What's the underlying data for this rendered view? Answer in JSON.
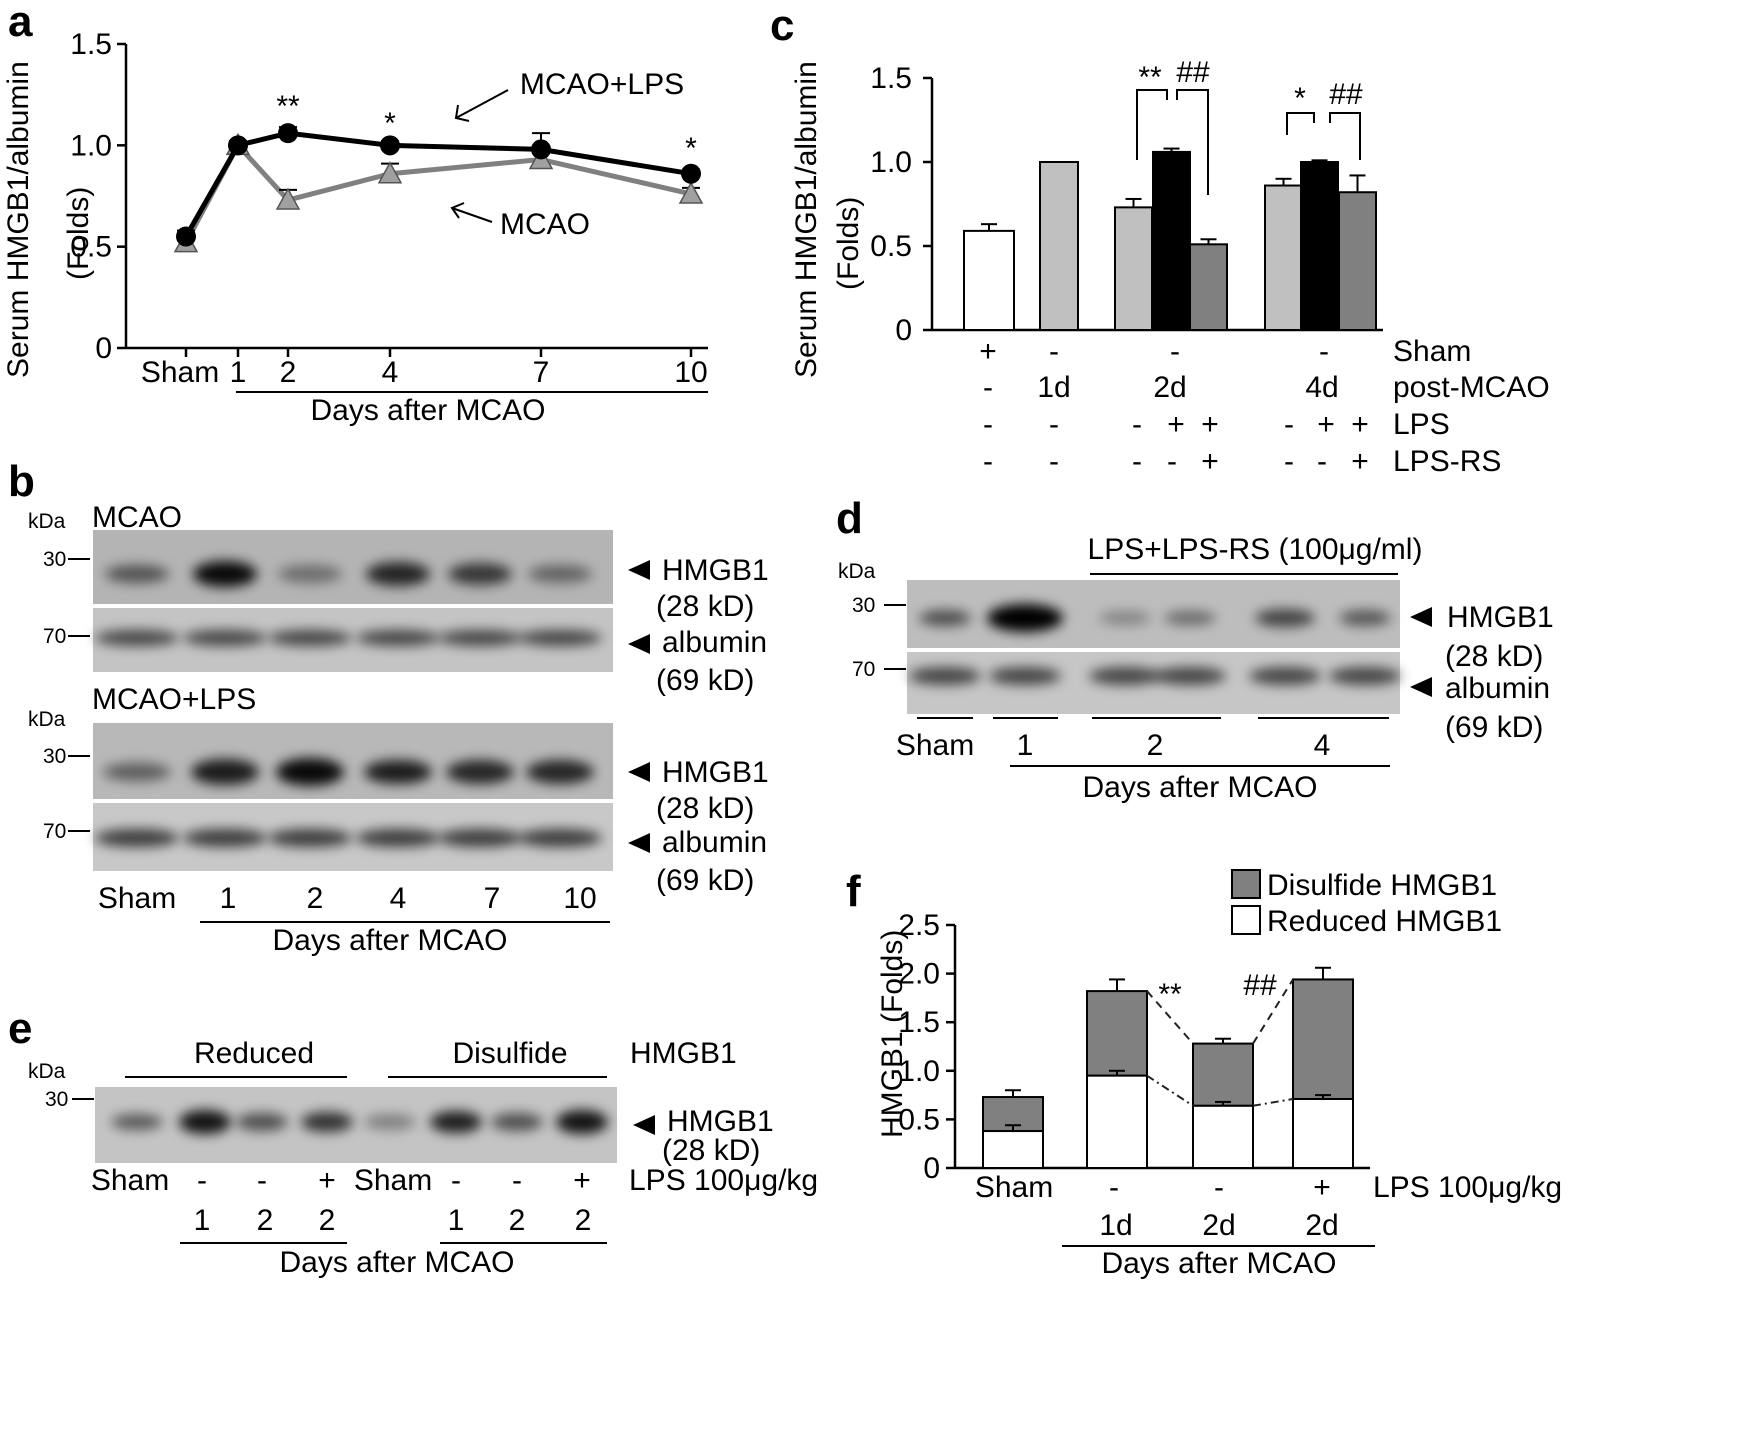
{
  "panels": {
    "a": {
      "letter": "a",
      "ylabel": "Serum HMGB1/albumin",
      "ylabel2": "(Folds)",
      "xlabel": "Days after MCAO",
      "yticks": [
        "1.5",
        "1.0",
        "0.5",
        "0"
      ],
      "xticks": [
        "Sham",
        "1",
        "2",
        "4",
        "7",
        "10"
      ],
      "annot": {
        "mcao_lps": "MCAO+LPS",
        "mcao": "MCAO"
      },
      "sig": [
        "**",
        "*",
        "*"
      ]
    },
    "b": {
      "letter": "b",
      "blot1_title": "MCAO",
      "blot2_title": "MCAO+LPS",
      "kda": "kDa",
      "mw30": "30",
      "mw70": "70",
      "hmgb1": "HMGB1",
      "hmgb1_size": "(28 kD)",
      "albumin": "albumin",
      "albumin_size": "(69 kD)",
      "lanes": [
        "Sham",
        "1",
        "2",
        "4",
        "7",
        "10"
      ],
      "xlabel": "Days after MCAO"
    },
    "c": {
      "letter": "c",
      "ylabel": "Serum HMGB1/albumin",
      "ylabel2": "(Folds)",
      "yticks": [
        "1.5",
        "1.0",
        "0.5",
        "0"
      ],
      "sig": {
        "s2a": "**",
        "s2b": "##",
        "s4a": "*",
        "s4b": "##"
      },
      "row_labels": [
        "Sham",
        "post-MCAO",
        "LPS",
        "LPS-RS"
      ],
      "row_sham": [
        "+",
        "-",
        "-",
        "-"
      ],
      "row_post": [
        "-",
        "1d",
        "2d",
        "4d"
      ],
      "row_lps": [
        "-",
        "-",
        "-",
        "+",
        "+",
        "-",
        "+",
        "+"
      ],
      "row_lpsrs": [
        "-",
        "-",
        "-",
        "-",
        "+",
        "-",
        "-",
        "+"
      ]
    },
    "d": {
      "letter": "d",
      "header": "LPS+LPS-RS (100μg/ml)",
      "kda": "kDa",
      "mw30": "30",
      "mw70": "70",
      "hmgb1": "HMGB1",
      "hmgb1_size": "(28 kD)",
      "albumin": "albumin",
      "albumin_size": "(69 kD)",
      "lanes": [
        "Sham",
        "1",
        "2",
        "4"
      ],
      "xlabel": "Days after MCAO"
    },
    "e": {
      "letter": "e",
      "kda": "kDa",
      "mw30": "30",
      "group_reduced": "Reduced",
      "group_disulfide": "Disulfide",
      "hmgb1_label": "HMGB1",
      "hmgb1": "HMGB1",
      "hmgb1_size": "(28 kD)",
      "row1": [
        "Sham",
        "-",
        "-",
        "+",
        "Sham",
        "-",
        "-",
        "+"
      ],
      "row1_label": "LPS 100μg/kg",
      "row2": [
        "1",
        "2",
        "2",
        "1",
        "2",
        "2"
      ],
      "xlabel": "Days after MCAO"
    },
    "f": {
      "letter": "f",
      "ylabel": "HMGB1  (Folds)",
      "yticks": [
        "2.5",
        "2.0",
        "1.5",
        "1.0",
        "0.5",
        "0"
      ],
      "legend": [
        "Disulfide HMGB1",
        "Reduced HMGB1"
      ],
      "sig": [
        "**",
        "##"
      ],
      "row1": [
        "Sham",
        "-",
        "-",
        "+"
      ],
      "row1_label": "LPS 100μg/kg",
      "row2": [
        "1d",
        "2d",
        "2d"
      ],
      "xlabel": "Days after MCAO"
    }
  },
  "chart_data": [
    {
      "panel": "a",
      "type": "line",
      "categories": [
        "Sham",
        "1",
        "2",
        "4",
        "7",
        "10"
      ],
      "x": [
        0,
        1,
        2,
        4,
        7,
        10
      ],
      "series": [
        {
          "name": "MCAO+LPS",
          "values": [
            0.55,
            1.0,
            1.06,
            1.0,
            0.98,
            0.86
          ],
          "errors": [
            0.03,
            0.02,
            0.03,
            0.02,
            0.08,
            0.02
          ],
          "color": "#000000",
          "marker": "circle"
        },
        {
          "name": "MCAO",
          "values": [
            0.52,
            1.0,
            0.73,
            0.86,
            0.93,
            0.76
          ],
          "errors": [
            0.03,
            0.02,
            0.05,
            0.05,
            0.04,
            0.03
          ],
          "color": "#808080",
          "marker": "triangle"
        }
      ],
      "ylabel": "Serum HMGB1/albumin (Folds)",
      "xlabel": "Days after MCAO",
      "ylim": [
        0,
        1.5
      ]
    },
    {
      "panel": "c",
      "type": "bar",
      "bars": [
        {
          "group": "Sham",
          "value": 0.59,
          "error": 0.04,
          "color": "#ffffff"
        },
        {
          "group": "1d",
          "value": 1.0,
          "error": 0,
          "color": "#c0c0c0"
        },
        {
          "group": "2d",
          "value": 0.73,
          "error": 0.05,
          "color": "#c0c0c0"
        },
        {
          "group": "2d",
          "value": 1.06,
          "error": 0.02,
          "color": "#000000"
        },
        {
          "group": "2d",
          "value": 0.51,
          "error": 0.03,
          "color": "#808080"
        },
        {
          "group": "4d",
          "value": 0.86,
          "error": 0.04,
          "color": "#c0c0c0"
        },
        {
          "group": "4d",
          "value": 1.0,
          "error": 0.01,
          "color": "#000000"
        },
        {
          "group": "4d",
          "value": 0.82,
          "error": 0.1,
          "color": "#808080"
        }
      ],
      "ylabel": "Serum HMGB1/albumin (Folds)",
      "ylim": [
        0,
        1.5
      ]
    },
    {
      "panel": "f",
      "type": "bar",
      "stacked": true,
      "categories": [
        "Sham",
        "1d",
        "2d",
        "2d"
      ],
      "series": [
        {
          "name": "Reduced HMGB1",
          "values": [
            0.38,
            0.95,
            0.64,
            0.71
          ],
          "errors": [
            0.06,
            0.05,
            0.04,
            0.04
          ],
          "color": "#ffffff"
        },
        {
          "name": "Disulfide HMGB1",
          "values": [
            0.35,
            0.87,
            0.64,
            1.23
          ],
          "errors": [
            0.07,
            0.12,
            0.05,
            0.12
          ],
          "color": "#808080"
        }
      ],
      "ylabel": "HMGB1 (Folds)",
      "ylim": [
        0,
        2.5
      ]
    }
  ]
}
